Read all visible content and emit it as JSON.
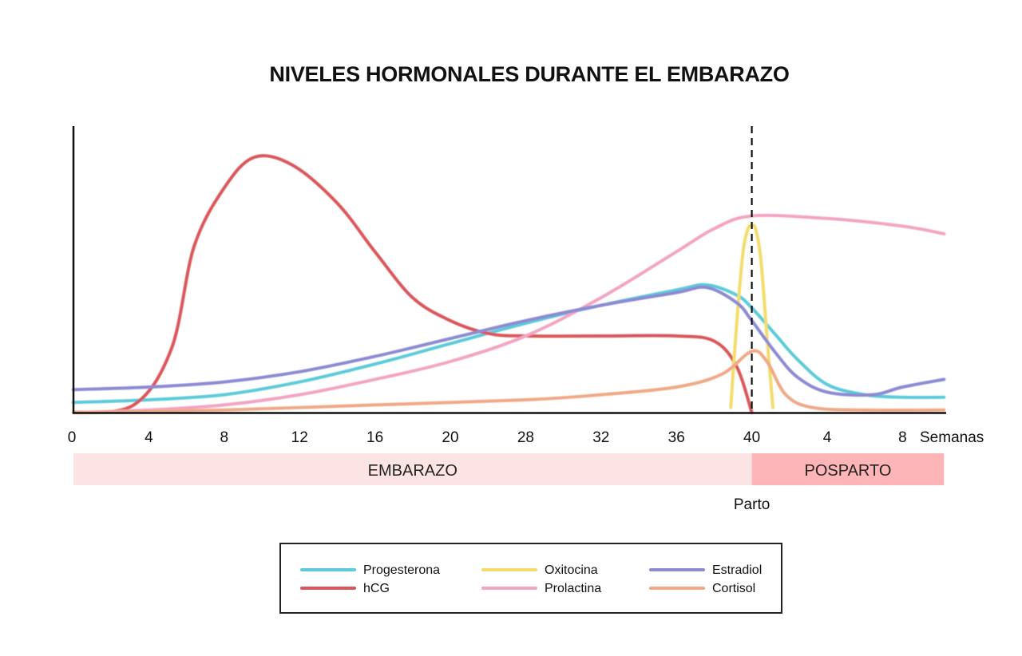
{
  "chart_data": {
    "type": "line",
    "title": "NIVELES HORMONALES DURANTE EL EMBARAZO",
    "xlabel": "Semanas",
    "ylabel": "",
    "x_ticks": [
      "0",
      "4",
      "8",
      "12",
      "16",
      "20",
      "28",
      "32",
      "36",
      "40",
      "4",
      "8"
    ],
    "ylim": [
      0,
      100
    ],
    "grid": false,
    "legend_position": "bottom",
    "delivery_marker": {
      "x_index": 9,
      "label": "Parto",
      "style": "dashed"
    },
    "phases": [
      {
        "label": "EMBARAZO",
        "from_index": 0,
        "to_index": 9,
        "color": "#fde4e4"
      },
      {
        "label": "POSPARTO",
        "from_index": 9,
        "to_index": 11.55,
        "color": "#fdb5b8"
      }
    ],
    "series": [
      {
        "name": "Progesterona",
        "color": "#5ccad9",
        "x": [
          0,
          1,
          2,
          3,
          4,
          5,
          6,
          7,
          8,
          8.4,
          8.8,
          9,
          9.3,
          9.6,
          10,
          10.5,
          11,
          11.55
        ],
        "y": [
          4,
          5,
          7,
          12,
          19,
          27,
          35,
          42,
          48,
          50,
          46,
          41,
          31,
          21,
          11,
          7,
          6,
          6
        ]
      },
      {
        "name": "hCG",
        "color": "#d9575a",
        "x": [
          0,
          0.8,
          1.3,
          1.6,
          2,
          2.4,
          2.9,
          3.5,
          4,
          4.5,
          5,
          5.5,
          6,
          7,
          8,
          8.5,
          8.8,
          9
        ],
        "y": [
          0,
          3,
          25,
          65,
          88,
          100,
          97,
          82,
          63,
          45,
          36,
          31,
          30,
          30,
          30,
          28,
          18,
          0
        ]
      },
      {
        "name": "Oxitocina",
        "color": "#f4dc6b",
        "x": [
          8.72,
          8.8,
          8.88,
          8.95,
          9,
          9.05,
          9.12,
          9.2,
          9.28
        ],
        "y": [
          2,
          35,
          62,
          72,
          73,
          72,
          60,
          30,
          2
        ]
      },
      {
        "name": "Prolactina",
        "color": "#f3a4c3",
        "x": [
          0,
          1,
          2,
          3,
          4,
          5,
          6,
          7,
          8,
          8.5,
          9,
          10,
          11,
          11.55
        ],
        "y": [
          0,
          1,
          3,
          7,
          13,
          20,
          30,
          45,
          63,
          72,
          77,
          76,
          73,
          70
        ]
      },
      {
        "name": "Estradiol",
        "color": "#8c8ad2",
        "x": [
          0,
          1,
          2,
          3,
          4,
          5,
          6,
          7,
          8,
          8.4,
          8.8,
          9,
          9.3,
          9.6,
          10,
          10.6,
          11,
          11.55
        ],
        "y": [
          9,
          10,
          12,
          16,
          22,
          29,
          36,
          42,
          47,
          49,
          43,
          36,
          24,
          14,
          8,
          7,
          10,
          13
        ]
      },
      {
        "name": "Cortisol",
        "color": "#efa986",
        "x": [
          0,
          2,
          4,
          6,
          7,
          8,
          8.6,
          9,
          9.2,
          9.45,
          9.8,
          10.5,
          11.55
        ],
        "y": [
          0,
          1,
          3,
          5,
          7,
          10,
          15,
          24,
          20,
          7,
          2,
          1,
          1
        ]
      }
    ]
  }
}
